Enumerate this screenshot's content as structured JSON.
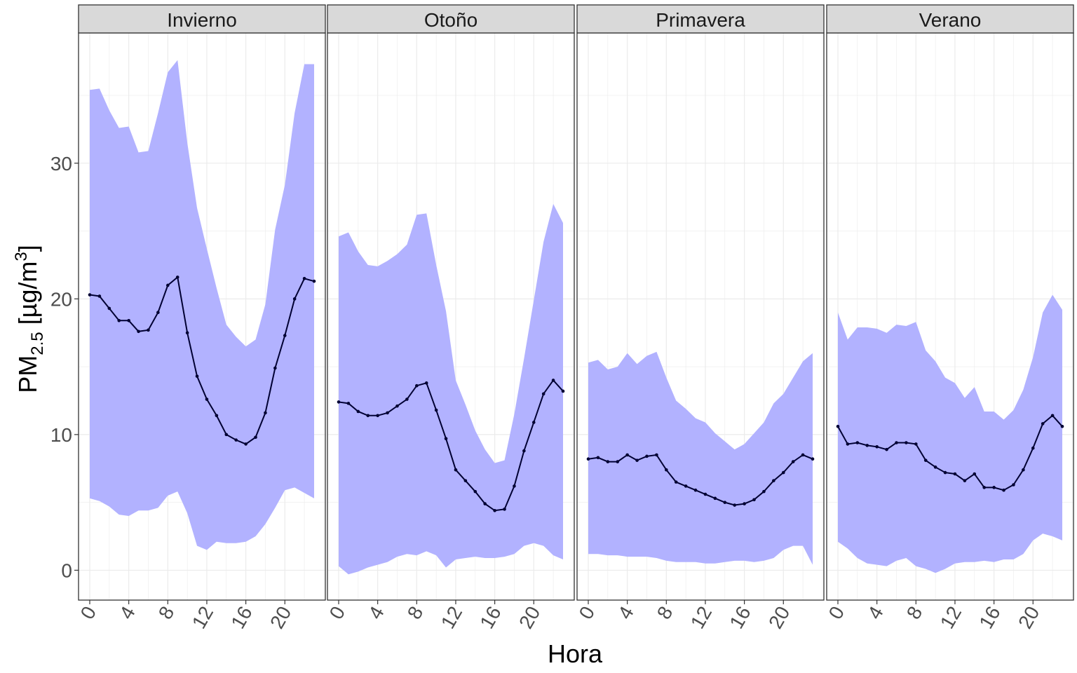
{
  "chart_data": {
    "type": "line",
    "xlabel": "Hora",
    "ylabel": {
      "main": "PM",
      "subscript": "2.5",
      "unit_open": " [µg/m",
      "unit_power": "3",
      "unit_close": "]"
    },
    "x_ticks": [
      0,
      4,
      8,
      12,
      16,
      20
    ],
    "y_ticks": [
      0,
      10,
      20,
      30
    ],
    "xlim": [
      -1.15,
      24.15
    ],
    "ylim": [
      -2.2,
      39.6
    ],
    "grid": true,
    "colors": {
      "band": "#b2b2ff",
      "line": "#000033",
      "strip_bg": "#d9d9d9",
      "grid": "#ebebeb"
    },
    "panels": [
      {
        "name": "Invierno",
        "x": [
          0,
          1,
          2,
          3,
          4,
          5,
          6,
          7,
          8,
          9,
          10,
          11,
          12,
          13,
          14,
          15,
          16,
          17,
          18,
          19,
          20,
          21,
          22,
          23
        ],
        "mean": [
          20.3,
          20.2,
          19.3,
          18.4,
          18.4,
          17.6,
          17.7,
          19.0,
          21.0,
          21.6,
          17.5,
          14.3,
          12.6,
          11.4,
          10.0,
          9.6,
          9.3,
          9.8,
          11.6,
          14.9,
          17.3,
          20.0,
          21.5,
          21.3
        ],
        "upper": [
          35.4,
          35.5,
          33.9,
          32.6,
          32.7,
          30.8,
          30.9,
          33.7,
          36.7,
          37.6,
          31.5,
          26.7,
          23.7,
          20.8,
          18.1,
          17.2,
          16.5,
          17.0,
          19.6,
          25.1,
          28.4,
          33.7,
          37.3,
          37.3
        ],
        "lower": [
          5.3,
          5.1,
          4.7,
          4.1,
          4.0,
          4.4,
          4.4,
          4.6,
          5.5,
          5.8,
          4.2,
          1.8,
          1.5,
          2.1,
          2.0,
          2.0,
          2.1,
          2.5,
          3.4,
          4.6,
          5.9,
          6.1,
          5.7,
          5.3
        ]
      },
      {
        "name": "Otoño",
        "x": [
          0,
          1,
          2,
          3,
          4,
          5,
          6,
          7,
          8,
          9,
          10,
          11,
          12,
          13,
          14,
          15,
          16,
          17,
          18,
          19,
          20,
          21,
          22,
          23
        ],
        "mean": [
          12.4,
          12.3,
          11.7,
          11.4,
          11.4,
          11.6,
          12.1,
          12.6,
          13.6,
          13.8,
          11.8,
          9.7,
          7.4,
          6.6,
          5.8,
          4.9,
          4.4,
          4.5,
          6.2,
          8.8,
          10.9,
          13.0,
          14.0,
          13.2
        ],
        "upper": [
          24.6,
          24.9,
          23.5,
          22.5,
          22.4,
          22.8,
          23.3,
          24.0,
          26.2,
          26.3,
          22.5,
          19.1,
          14.0,
          12.2,
          10.3,
          8.9,
          7.9,
          8.1,
          11.5,
          15.6,
          19.9,
          24.2,
          27.0,
          25.6
        ],
        "lower": [
          0.3,
          -0.3,
          -0.1,
          0.2,
          0.4,
          0.6,
          1.0,
          1.2,
          1.1,
          1.4,
          1.1,
          0.2,
          0.8,
          0.9,
          1.0,
          0.9,
          0.9,
          1.0,
          1.2,
          1.8,
          2.0,
          1.8,
          1.1,
          0.8
        ]
      },
      {
        "name": "Primavera",
        "x": [
          0,
          1,
          2,
          3,
          4,
          5,
          6,
          7,
          8,
          9,
          10,
          11,
          12,
          13,
          14,
          15,
          16,
          17,
          18,
          19,
          20,
          21,
          22,
          23
        ],
        "mean": [
          8.2,
          8.3,
          8.0,
          8.0,
          8.5,
          8.1,
          8.4,
          8.5,
          7.4,
          6.5,
          6.2,
          5.9,
          5.6,
          5.3,
          5.0,
          4.8,
          4.9,
          5.2,
          5.8,
          6.6,
          7.2,
          8.0,
          8.5,
          8.2
        ],
        "upper": [
          15.3,
          15.5,
          14.8,
          15.0,
          16.0,
          15.2,
          15.8,
          16.1,
          14.2,
          12.5,
          11.9,
          11.2,
          10.9,
          10.1,
          9.5,
          8.9,
          9.3,
          10.1,
          10.9,
          12.3,
          13.0,
          14.2,
          15.4,
          16.0
        ],
        "lower": [
          1.2,
          1.2,
          1.1,
          1.1,
          1.0,
          1.0,
          1.0,
          0.9,
          0.7,
          0.6,
          0.6,
          0.6,
          0.5,
          0.5,
          0.6,
          0.7,
          0.7,
          0.6,
          0.7,
          0.9,
          1.5,
          1.8,
          1.8,
          0.4
        ]
      },
      {
        "name": "Verano",
        "x": [
          0,
          1,
          2,
          3,
          4,
          5,
          6,
          7,
          8,
          9,
          10,
          11,
          12,
          13,
          14,
          15,
          16,
          17,
          18,
          19,
          20,
          21,
          22,
          23
        ],
        "mean": [
          10.6,
          9.3,
          9.4,
          9.2,
          9.1,
          8.9,
          9.4,
          9.4,
          9.3,
          8.1,
          7.6,
          7.2,
          7.1,
          6.6,
          7.1,
          6.1,
          6.1,
          5.9,
          6.3,
          7.4,
          9.0,
          10.8,
          11.4,
          10.6
        ],
        "upper": [
          19.0,
          17.0,
          17.9,
          17.9,
          17.8,
          17.5,
          18.1,
          18.0,
          18.3,
          16.2,
          15.4,
          14.2,
          13.8,
          12.7,
          13.5,
          11.7,
          11.7,
          11.1,
          11.8,
          13.3,
          15.7,
          19.0,
          20.3,
          19.2
        ],
        "lower": [
          2.1,
          1.6,
          0.9,
          0.5,
          0.4,
          0.3,
          0.7,
          0.9,
          0.3,
          0.1,
          -0.2,
          0.1,
          0.5,
          0.6,
          0.6,
          0.7,
          0.6,
          0.8,
          0.8,
          1.2,
          2.2,
          2.7,
          2.5,
          2.2
        ]
      }
    ]
  }
}
